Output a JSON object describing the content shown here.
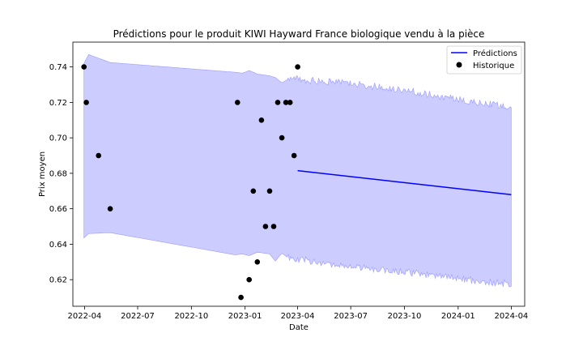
{
  "chart_data": {
    "type": "line",
    "title": "Prédictions pour le produit KIWI Hayward France biologique vendu à la pièce",
    "xlabel": "Date",
    "ylabel": "Prix moyen",
    "xlim": [
      "2022-03-12",
      "2024-04-24"
    ],
    "ylim": [
      0.605,
      0.754
    ],
    "x_ticks": [
      "2022-04",
      "2022-07",
      "2022-10",
      "2023-01",
      "2023-04",
      "2023-07",
      "2023-10",
      "2024-01",
      "2024-04"
    ],
    "y_ticks": [
      0.62,
      0.64,
      0.66,
      0.68,
      0.7,
      0.72,
      0.74
    ],
    "grid": false,
    "legend": {
      "placement": "top-right",
      "entries": [
        "Prédictions",
        "Historique"
      ]
    },
    "colors": {
      "prediction_line": "#0000ff",
      "band_fill": "#ccccff",
      "band_edge": "#9999ff",
      "points": "#000000"
    },
    "series": [
      {
        "name": "Prédictions",
        "x": [
          "2023-04-01",
          "2024-04-01"
        ],
        "values": [
          0.6815,
          0.668
        ]
      },
      {
        "name": "Historique",
        "x": [
          "2022-03-31",
          "2022-04-04",
          "2022-04-25",
          "2022-05-15",
          "2022-12-19",
          "2022-12-25",
          "2023-01-08",
          "2023-01-15",
          "2023-01-22",
          "2023-01-29",
          "2023-02-05",
          "2023-02-12",
          "2023-02-19",
          "2023-02-26",
          "2023-03-05",
          "2023-03-12",
          "2023-03-19",
          "2023-03-26",
          "2023-04-01"
        ],
        "values": [
          0.74,
          0.72,
          0.69,
          0.66,
          0.72,
          0.61,
          0.62,
          0.67,
          0.63,
          0.71,
          0.65,
          0.67,
          0.65,
          0.72,
          0.7,
          0.72,
          0.72,
          0.69,
          0.74
        ]
      }
    ],
    "confidence_band": {
      "x": [
        "2022-03-31",
        "2022-04-08",
        "2022-05-15",
        "2022-12-15",
        "2022-12-28",
        "2023-01-08",
        "2023-01-22",
        "2023-02-12",
        "2023-02-22",
        "2023-03-05",
        "2023-03-15",
        "2023-04-01",
        "2023-07-01",
        "2023-10-01",
        "2024-01-01",
        "2024-04-01"
      ],
      "upper": [
        0.742,
        0.747,
        0.7425,
        0.737,
        0.7365,
        0.738,
        0.736,
        0.735,
        0.734,
        0.731,
        0.733,
        0.733,
        0.7305,
        0.727,
        0.7215,
        0.7175
      ],
      "lower": [
        0.6435,
        0.646,
        0.6465,
        0.634,
        0.6345,
        0.6335,
        0.6355,
        0.6345,
        0.6305,
        0.635,
        0.6325,
        0.6315,
        0.6275,
        0.6245,
        0.6205,
        0.6175
      ]
    }
  }
}
